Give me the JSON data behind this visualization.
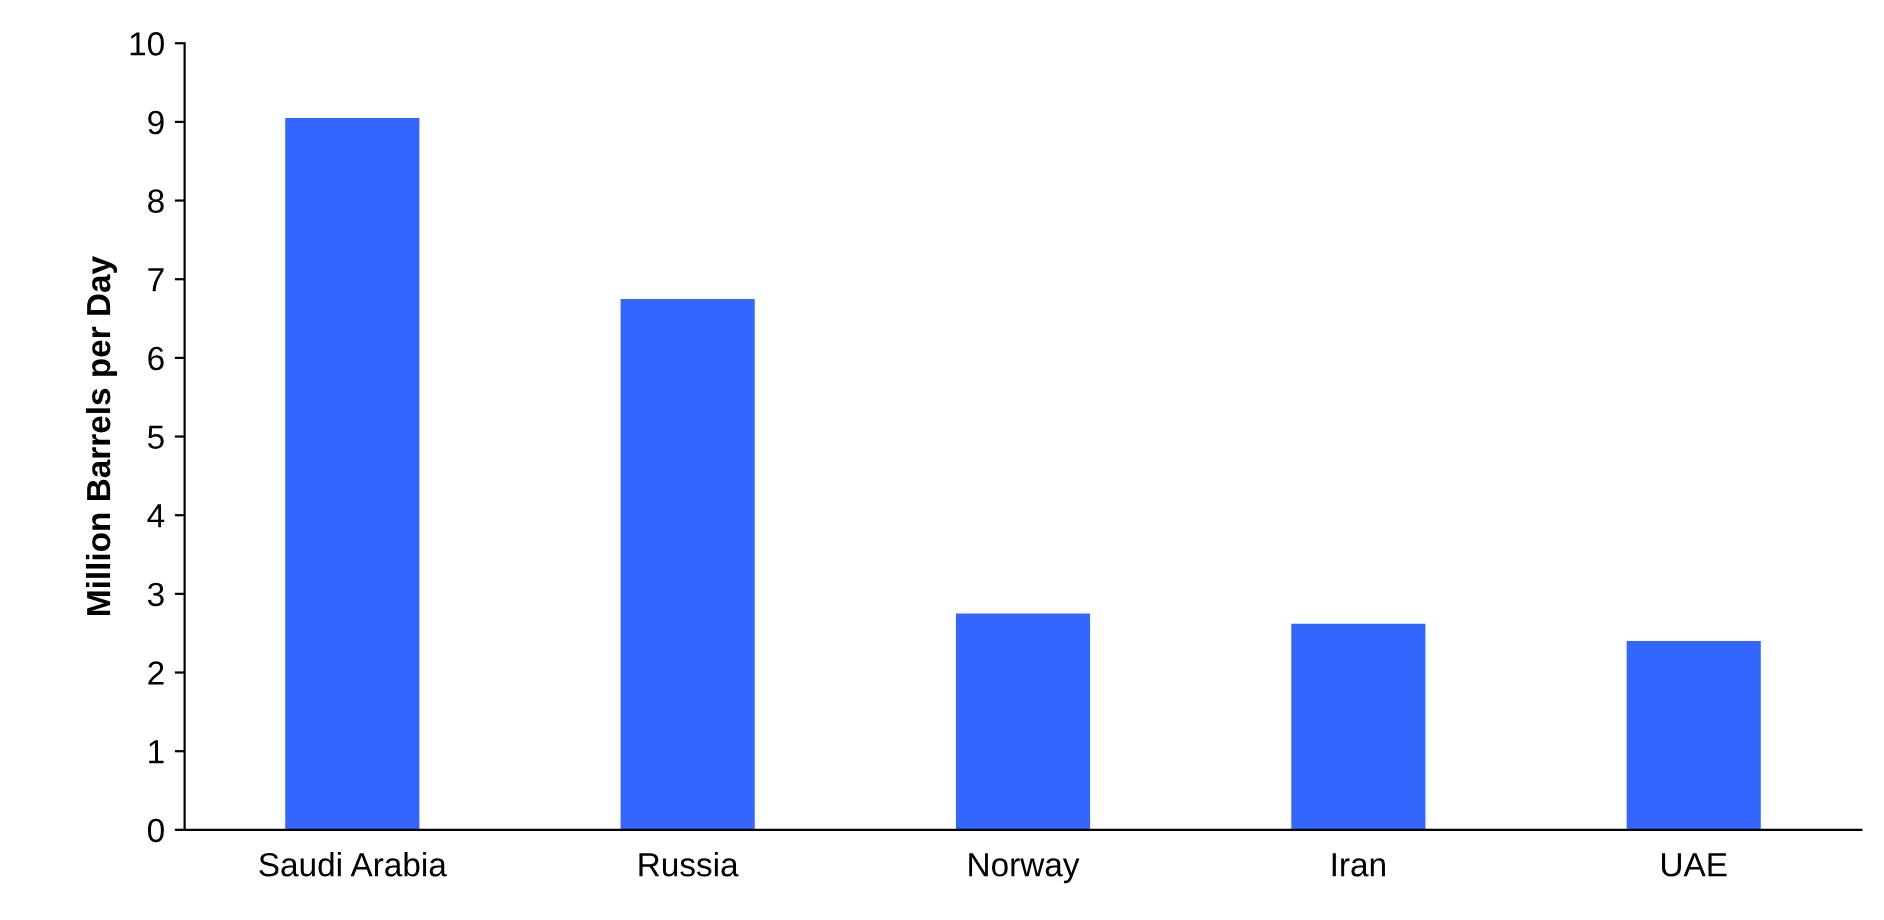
{
  "chart_data": {
    "type": "bar",
    "ylabel": "Million Barrels per Day",
    "categories": [
      "Saudi Arabia",
      "Russia",
      "Norway",
      "Iran",
      "UAE"
    ],
    "values": [
      9.05,
      6.75,
      2.75,
      2.62,
      2.4
    ],
    "color": "#3366ff",
    "ylim": [
      0,
      10
    ],
    "yticks": [
      0,
      1,
      2,
      3,
      4,
      5,
      6,
      7,
      8,
      9,
      10
    ],
    "grid": false,
    "legend": false
  }
}
